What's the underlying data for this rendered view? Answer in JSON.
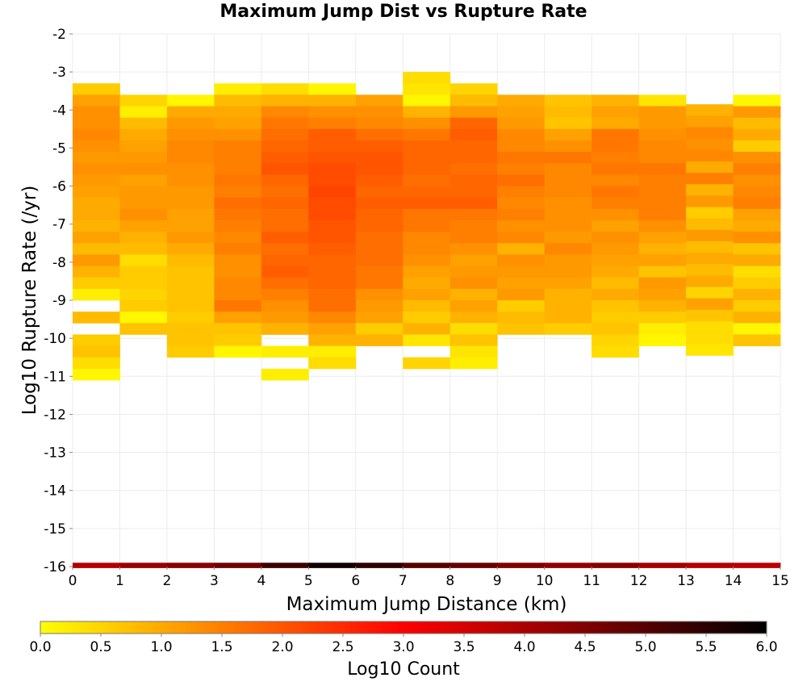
{
  "chart_data": {
    "type": "heatmap",
    "title": "Maximum Jump Dist vs Rupture Rate",
    "xlabel": "Maximum Jump Distance (km)",
    "ylabel": "Log10 Rupture Rate (/yr)",
    "xlim": [
      0,
      15
    ],
    "ylim": [
      -16,
      -2
    ],
    "x_ticks": [
      "0",
      "1",
      "2",
      "3",
      "4",
      "5",
      "6",
      "7",
      "8",
      "9",
      "10",
      "11",
      "12",
      "13",
      "14",
      "15"
    ],
    "y_ticks": [
      "-2",
      "-3",
      "-4",
      "-5",
      "-6",
      "-7",
      "-8",
      "-9",
      "-10",
      "-11",
      "-12",
      "-13",
      "-14",
      "-15",
      "-16"
    ],
    "grid": true,
    "x_bin_width": 1,
    "y_bin_height": 0.3,
    "colorbar": {
      "label": "Log10 Count",
      "range": [
        0,
        6
      ],
      "ticks": [
        "0.0",
        "0.5",
        "1.0",
        "1.5",
        "2.0",
        "2.5",
        "3.0",
        "3.5",
        "4.0",
        "4.5",
        "5.0",
        "5.5",
        "6.0"
      ],
      "stops": [
        "#ffff00",
        "#ff7f00",
        "#ff0000",
        "#800000",
        "#000000"
      ]
    },
    "columns": [
      {
        "x": 0.5,
        "y_top": -3.3,
        "values": [
          0.6,
          1.1,
          1.3,
          1.3,
          1.4,
          1.3,
          1.2,
          1.3,
          1.2,
          1.1,
          1.0,
          1.0,
          0.9,
          1.1,
          0.8,
          1.2,
          0.9,
          0.6,
          0.2,
          null,
          0.8,
          null,
          0.6,
          0.7,
          0.4,
          0.1
        ]
      },
      {
        "x": 1.5,
        "y_top": -3.6,
        "values": [
          0.5,
          0.2,
          0.8,
          1.0,
          1.1,
          1.2,
          1.3,
          1.1,
          1.2,
          1.2,
          1.3,
          1.1,
          0.9,
          0.8,
          0.4,
          0.6,
          0.6,
          0.5,
          0.6,
          0.1,
          0.7
        ]
      },
      {
        "x": 2.5,
        "y_top": -3.6,
        "values": [
          0.1,
          1.0,
          1.2,
          1.3,
          1.4,
          1.4,
          1.3,
          1.3,
          1.2,
          1.2,
          1.1,
          1.1,
          1.2,
          1.0,
          0.8,
          0.7,
          0.7,
          0.7,
          0.7,
          0.6,
          0.7,
          0.7,
          0.6
        ]
      },
      {
        "x": 3.5,
        "y_top": -3.3,
        "values": [
          0.2,
          0.8,
          1.0,
          1.1,
          1.3,
          1.5,
          1.5,
          1.5,
          1.6,
          1.5,
          1.7,
          1.6,
          1.5,
          1.4,
          1.5,
          1.3,
          1.3,
          1.4,
          1.4,
          1.6,
          1.1,
          0.7,
          0.6,
          0.1
        ]
      },
      {
        "x": 4.5,
        "y_top": -3.3,
        "values": [
          0.4,
          0.9,
          1.4,
          1.6,
          1.7,
          1.8,
          1.9,
          2.0,
          1.8,
          1.7,
          1.8,
          1.7,
          1.7,
          1.9,
          1.7,
          1.8,
          1.9,
          1.7,
          1.5,
          1.3,
          1.2,
          0.9,
          null,
          0.2,
          null,
          0.2
        ]
      },
      {
        "x": 5.5,
        "y_top": -3.3,
        "values": [
          0.1,
          0.9,
          1.3,
          1.5,
          1.9,
          1.9,
          2.0,
          2.1,
          2.1,
          2.2,
          2.1,
          2.1,
          2.0,
          2.0,
          1.9,
          1.8,
          1.8,
          1.8,
          1.7,
          1.7,
          1.4,
          1.1,
          0.9,
          0.2,
          0.4
        ]
      },
      {
        "x": 6.5,
        "y_top": -3.6,
        "values": [
          1.1,
          1.3,
          1.4,
          1.7,
          1.9,
          2.0,
          2.0,
          1.9,
          1.8,
          1.9,
          1.8,
          1.8,
          1.7,
          1.7,
          1.7,
          1.6,
          1.6,
          1.3,
          1.2,
          1.1,
          0.6,
          0.9
        ]
      },
      {
        "x": 7.5,
        "y_top": -3.0,
        "values": [
          0.4,
          0.3,
          0.1,
          0.9,
          1.3,
          1.6,
          1.8,
          1.8,
          1.8,
          1.7,
          1.8,
          1.9,
          1.6,
          1.6,
          1.4,
          1.4,
          1.3,
          1.1,
          1.0,
          1.1,
          0.8,
          0.6,
          0.9,
          0.3,
          null,
          0.5
        ]
      },
      {
        "x": 8.5,
        "y_top": -3.3,
        "values": [
          0.5,
          0.8,
          1.2,
          1.8,
          1.9,
          1.8,
          1.8,
          1.7,
          1.8,
          1.8,
          1.9,
          1.6,
          1.5,
          1.5,
          1.3,
          1.1,
          1.2,
          1.3,
          0.9,
          1.1,
          0.9,
          0.4,
          0.7,
          0.3,
          0.2
        ]
      },
      {
        "x": 9.5,
        "y_top": -3.6,
        "values": [
          1.0,
          1.1,
          1.2,
          1.4,
          1.4,
          1.6,
          1.5,
          1.7,
          1.5,
          1.4,
          1.5,
          1.3,
          1.4,
          0.9,
          1.3,
          1.2,
          1.1,
          1.2,
          0.6,
          0.8,
          0.7
        ]
      },
      {
        "x": 10.5,
        "y_top": -3.6,
        "values": [
          0.7,
          0.8,
          0.7,
          1.1,
          1.3,
          1.6,
          1.4,
          1.4,
          1.4,
          1.3,
          1.3,
          1.3,
          1.2,
          1.4,
          1.2,
          1.2,
          1.1,
          0.9,
          0.9,
          0.9,
          0.6
        ]
      },
      {
        "x": 11.5,
        "y_top": -3.6,
        "values": [
          0.9,
          1.1,
          1.0,
          1.6,
          1.6,
          1.5,
          1.6,
          1.4,
          1.6,
          1.5,
          1.3,
          1.1,
          1.3,
          1.2,
          1.1,
          1.0,
          0.8,
          1.0,
          0.7,
          0.6,
          0.7,
          0.5,
          0.4
        ]
      },
      {
        "x": 12.5,
        "y_top": -3.6,
        "values": [
          0.3,
          1.2,
          1.2,
          1.3,
          1.4,
          1.4,
          1.6,
          1.5,
          1.5,
          1.5,
          1.5,
          1.3,
          1.1,
          0.9,
          1.1,
          0.7,
          1.2,
          1.1,
          0.9,
          0.6,
          0.2,
          0.1
        ]
      },
      {
        "x": 13.5,
        "y_top": -3.85,
        "values": [
          0.9,
          1.1,
          1.4,
          1.3,
          1.4,
          1.0,
          1.5,
          0.9,
          1.2,
          0.6,
          0.8,
          1.2,
          0.8,
          1.0,
          0.8,
          1.0,
          0.5,
          1.1,
          0.7,
          0.4,
          0.4,
          0.3
        ]
      },
      {
        "x": 14.5,
        "y_top": -3.6,
        "values": [
          0.1,
          1.2,
          0.8,
          1.0,
          0.6,
          1.3,
          1.5,
          1.3,
          1.4,
          1.5,
          1.1,
          1.0,
          1.3,
          0.7,
          1.0,
          0.4,
          0.6,
          0.9,
          0.6,
          0.9,
          0.1,
          0.7
        ]
      }
    ],
    "bottom_band": {
      "y_center": -16,
      "values": [
        3.9,
        4.2,
        4.4,
        4.7,
        5.3,
        5.8,
        5.5,
        5.0,
        4.8,
        4.5,
        4.3,
        4.4,
        4.1,
        3.9,
        3.8
      ]
    }
  }
}
